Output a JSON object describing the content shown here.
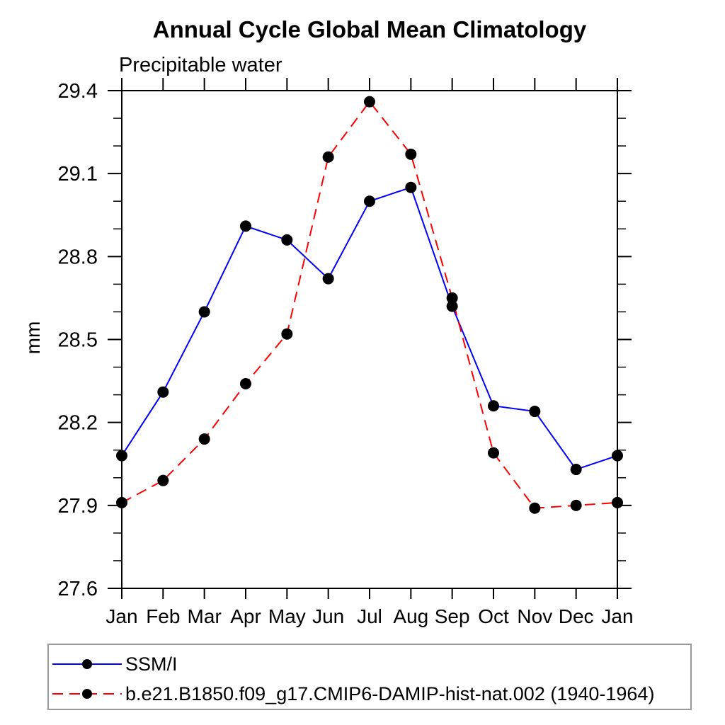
{
  "chart_data": {
    "type": "line",
    "title": "Annual Cycle Global Mean Climatology",
    "subtitle": "Precipitable water",
    "ylabel": "mm",
    "xlabel": "",
    "categories": [
      "Jan",
      "Feb",
      "Mar",
      "Apr",
      "May",
      "Jun",
      "Jul",
      "Aug",
      "Sep",
      "Oct",
      "Nov",
      "Dec",
      "Jan"
    ],
    "ylim": [
      27.6,
      29.4
    ],
    "ytick_major_step": 0.3,
    "ytick_minor_step": 0.1,
    "ytick_labels": [
      "27.6",
      "27.9",
      "28.2",
      "28.5",
      "28.8",
      "29.1",
      "29.4"
    ],
    "grid": false,
    "frame": "box-with-outward-ticks",
    "legend_position": "bottom-left-boxed",
    "marker": "filled-circle",
    "marker_color": "#000000",
    "series": [
      {
        "name": "SSM/I",
        "color": "#0000ff",
        "line_style": "solid",
        "values": [
          28.08,
          28.31,
          28.6,
          28.91,
          28.86,
          28.72,
          29.0,
          29.05,
          28.62,
          28.26,
          28.24,
          28.03,
          28.08
        ]
      },
      {
        "name": "b.e21.B1850.f09_g17.CMIP6-DAMIP-hist-nat.002 (1940-1964)",
        "color": "#ff0000",
        "line_style": "dashed",
        "values": [
          27.91,
          27.99,
          28.14,
          28.34,
          28.52,
          29.16,
          29.36,
          29.17,
          28.65,
          28.09,
          27.89,
          27.9,
          27.91
        ]
      }
    ]
  }
}
